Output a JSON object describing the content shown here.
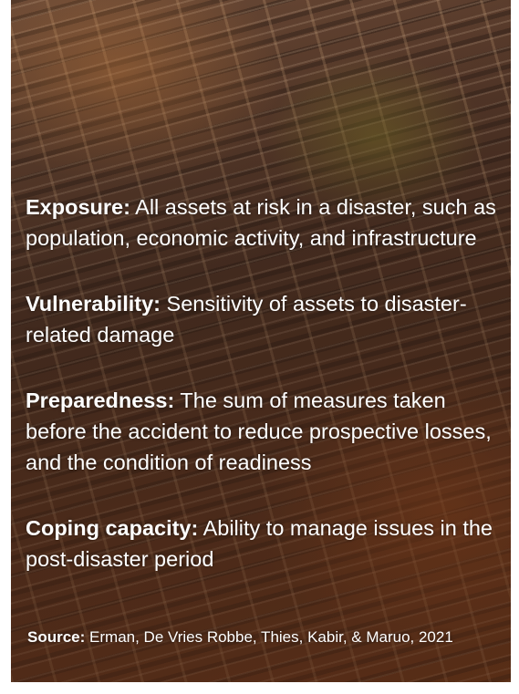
{
  "definitions": [
    {
      "term": "Exposure:",
      "text": "All assets at risk in a disaster, such as population, economic activity, and infrastructure"
    },
    {
      "term": "Vulnerability:",
      "text": "Sensitivity of assets to disaster-related damage"
    },
    {
      "term": "Preparedness:",
      "text": "The sum of measures taken before the accident to reduce prospective losses, and the condition of readiness"
    },
    {
      "term": "Coping capacity:",
      "text": "Ability to manage issues in the post-disaster period"
    }
  ],
  "source": {
    "label": "Source:",
    "text": "Erman, De Vries Robbe, Thies, Kabir, & Maruo, 2021"
  }
}
